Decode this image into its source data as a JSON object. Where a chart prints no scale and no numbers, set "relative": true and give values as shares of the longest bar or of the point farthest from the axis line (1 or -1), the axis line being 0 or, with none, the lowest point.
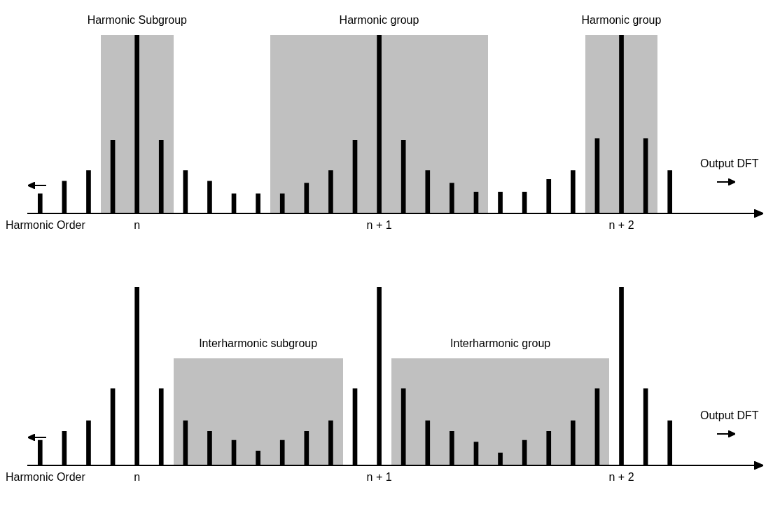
{
  "chart_data": [
    {
      "type": "bar",
      "relative": true,
      "grid": false,
      "legend": false,
      "tick_labels": "x",
      "categories": [
        null,
        null,
        null,
        null,
        "n",
        null,
        null,
        null,
        null,
        null,
        null,
        null,
        null,
        null,
        "n + 1",
        null,
        null,
        null,
        null,
        null,
        null,
        null,
        null,
        null,
        "n + 2",
        null,
        null
      ],
      "series": [
        {
          "color": "#000000",
          "values": [
            0.11,
            0.18,
            0.24,
            0.41,
            1,
            0.41,
            0.24,
            0.18,
            0.11,
            0.11,
            0.11,
            0.17,
            0.24,
            0.41,
            1,
            0.41,
            0.24,
            0.17,
            0.12,
            0.12,
            0.12,
            0.19,
            0.24,
            0.42,
            1,
            0.42,
            0.24
          ]
        }
      ],
      "annotations": [
        "Harmonic Subgroup",
        "Harmonic group",
        "Harmonic group",
        "Harmonic Order",
        "Output DFT"
      ]
    },
    {
      "type": "bar",
      "relative": true,
      "grid": false,
      "legend": false,
      "tick_labels": "x",
      "categories": [
        null,
        null,
        null,
        null,
        "n",
        null,
        null,
        null,
        null,
        null,
        null,
        null,
        null,
        null,
        "n + 1",
        null,
        null,
        null,
        null,
        null,
        null,
        null,
        null,
        null,
        "n + 2",
        null,
        null
      ],
      "series": [
        {
          "color": "#000000",
          "values": [
            0.14,
            0.19,
            0.25,
            0.43,
            1,
            0.43,
            0.25,
            0.19,
            0.14,
            0.08,
            0.14,
            0.19,
            0.25,
            0.43,
            1,
            0.43,
            0.25,
            0.19,
            0.13,
            0.07,
            0.14,
            0.19,
            0.25,
            0.43,
            1,
            0.43,
            0.25
          ]
        }
      ],
      "annotations": [
        "Interharmonic subgroup",
        "Interharmonic group",
        "Harmonic Order",
        "Output DFT"
      ]
    }
  ]
}
